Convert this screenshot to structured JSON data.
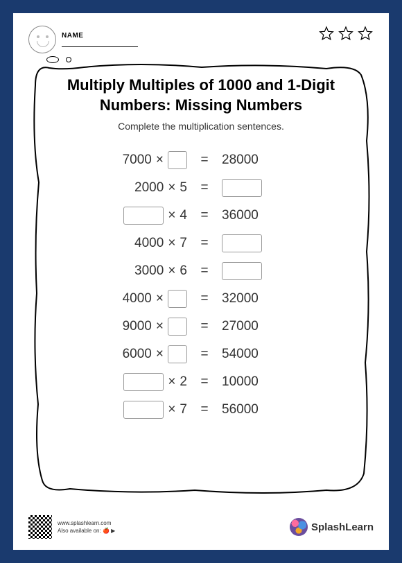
{
  "header": {
    "name_label": "NAME"
  },
  "title": "Multiply Multiples of 1000 and 1-Digit Numbers: Missing Numbers",
  "subtitle": "Complete the multiplication sentences.",
  "equations": [
    {
      "a": "7000",
      "op": "×",
      "b_blank": true,
      "b": "",
      "eq": "=",
      "r": "28000",
      "r_blank": false
    },
    {
      "a": "2000",
      "op": "×",
      "b": "5",
      "b_blank": false,
      "eq": "=",
      "r": "",
      "r_blank": true
    },
    {
      "a": "",
      "a_blank": true,
      "op": "×",
      "b": "4",
      "b_blank": false,
      "eq": "=",
      "r": "36000",
      "r_blank": false
    },
    {
      "a": "4000",
      "op": "×",
      "b": "7",
      "b_blank": false,
      "eq": "=",
      "r": "",
      "r_blank": true
    },
    {
      "a": "3000",
      "op": "×",
      "b": "6",
      "b_blank": false,
      "eq": "=",
      "r": "",
      "r_blank": true
    },
    {
      "a": "4000",
      "op": "×",
      "b_blank": true,
      "b": "",
      "eq": "=",
      "r": "32000",
      "r_blank": false
    },
    {
      "a": "9000",
      "op": "×",
      "b_blank": true,
      "b": "",
      "eq": "=",
      "r": "27000",
      "r_blank": false
    },
    {
      "a": "6000",
      "op": "×",
      "b_blank": true,
      "b": "",
      "eq": "=",
      "r": "54000",
      "r_blank": false
    },
    {
      "a": "",
      "a_blank": true,
      "op": "×",
      "b": "2",
      "b_blank": false,
      "eq": "=",
      "r": "10000",
      "r_blank": false
    },
    {
      "a": "",
      "a_blank": true,
      "op": "×",
      "b": "7",
      "b_blank": false,
      "eq": "=",
      "r": "56000",
      "r_blank": false
    }
  ],
  "footer": {
    "url": "www.splashlearn.com",
    "avail": "Also available on:",
    "brand": "SplashLearn"
  },
  "style": {
    "box_border": "#999",
    "text": "#333",
    "bg_outer": "#1a3a6e"
  }
}
